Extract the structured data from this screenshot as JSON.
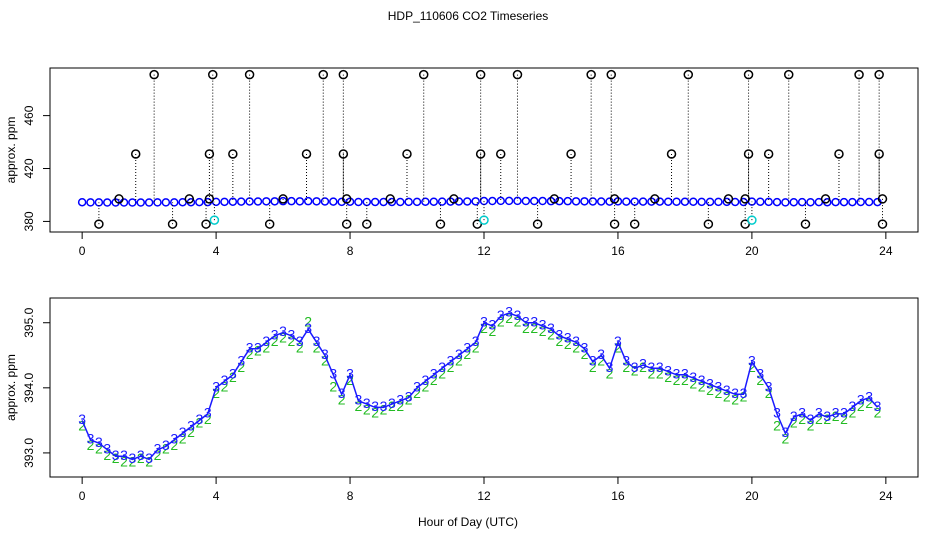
{
  "chart_data": [
    {
      "type": "scatter",
      "title": "HDP_110606  CO2 Timeseries",
      "ylabel": "approx. ppm",
      "xlim": [
        -0.96,
        24.96
      ],
      "xticks": [
        0,
        4,
        8,
        12,
        16,
        20,
        24
      ],
      "ylim": [
        372,
        496
      ],
      "yticks": [
        380,
        420,
        460
      ],
      "x": [
        0,
        0.25,
        0.5,
        0.75,
        1,
        1.25,
        1.5,
        1.75,
        2,
        2.25,
        2.5,
        2.75,
        3,
        3.25,
        3.5,
        3.75,
        4,
        4.25,
        4.5,
        4.75,
        5,
        5.25,
        5.5,
        5.75,
        6,
        6.25,
        6.5,
        6.75,
        7,
        7.25,
        7.5,
        7.75,
        8,
        8.25,
        8.5,
        8.75,
        9,
        9.25,
        9.5,
        9.75,
        10,
        10.25,
        10.5,
        10.75,
        11,
        11.25,
        11.5,
        11.75,
        12,
        12.25,
        12.5,
        12.75,
        13,
        13.25,
        13.5,
        13.75,
        14,
        14.25,
        14.5,
        14.75,
        15,
        15.25,
        15.5,
        15.75,
        16,
        16.25,
        16.5,
        16.75,
        17,
        17.25,
        17.5,
        17.75,
        18,
        18.25,
        18.5,
        18.75,
        19,
        19.25,
        19.5,
        19.75,
        20,
        20.25,
        20.5,
        20.75,
        21,
        21.25,
        21.5,
        21.75,
        22,
        22.25,
        22.5,
        22.75,
        23,
        23.25,
        23.5,
        23.75
      ],
      "series": [
        {
          "color": "#0000ff",
          "marker": "circle",
          "values": [
            394.5,
            394.4,
            394.4,
            394.3,
            394.3,
            394.3,
            394.3,
            394.3,
            394.3,
            394.4,
            394.4,
            394.4,
            394.5,
            394.5,
            394.6,
            394.6,
            394.8,
            394.8,
            394.9,
            395.0,
            395.1,
            395.1,
            395.2,
            395.2,
            395.3,
            395.3,
            395.2,
            395.3,
            395.2,
            395.1,
            395.0,
            394.8,
            394.9,
            394.7,
            394.7,
            394.7,
            394.7,
            394.7,
            394.7,
            394.8,
            394.8,
            394.9,
            394.9,
            395.0,
            395.0,
            395.1,
            395.1,
            395.2,
            395.4,
            395.4,
            395.5,
            395.5,
            395.5,
            395.4,
            395.4,
            395.4,
            395.3,
            395.3,
            395.3,
            395.2,
            395.2,
            395.1,
            395.1,
            395.0,
            395.2,
            395.0,
            395.0,
            395.0,
            395.0,
            395.0,
            394.9,
            394.9,
            394.9,
            394.9,
            394.8,
            394.8,
            394.8,
            394.8,
            394.7,
            394.7,
            395.0,
            394.9,
            394.8,
            394.6,
            394.4,
            394.5,
            394.6,
            394.5,
            394.6,
            394.5,
            394.6,
            394.6,
            394.6,
            394.7,
            394.7,
            394.6
          ]
        },
        {
          "color": "#000000",
          "marker": "circle",
          "stem": true,
          "x": [
            2.15,
            3.9,
            5.0,
            7.2,
            7.8,
            10.2,
            11.9,
            13.0,
            15.2,
            15.8,
            18.1,
            19.9,
            21.1,
            23.2,
            23.8,
            1.6,
            3.8,
            4.5,
            6.7,
            7.8,
            9.7,
            11.9,
            12.5,
            14.6,
            17.6,
            19.9,
            20.5,
            22.6,
            23.8,
            1.1,
            3.2,
            3.8,
            6.0,
            7.9,
            9.2,
            11.1,
            14.1,
            15.9,
            17.1,
            19.3,
            19.8,
            22.2,
            23.9,
            0.5,
            2.7,
            3.7,
            5.6,
            7.9,
            8.5,
            10.7,
            11.8,
            13.6,
            15.9,
            16.5,
            18.7,
            19.8,
            21.6,
            23.9
          ],
          "values": [
            491,
            491,
            491,
            491,
            491,
            491,
            491,
            491,
            491,
            491,
            491,
            491,
            491,
            491,
            491,
            431,
            431,
            431,
            431,
            431,
            431,
            431,
            431,
            431,
            431,
            431,
            431,
            431,
            431,
            397,
            397,
            397,
            397,
            397,
            397,
            397,
            397,
            397,
            397,
            397,
            397,
            397,
            397,
            378,
            378,
            378,
            378,
            378,
            378,
            378,
            378,
            378,
            378,
            378,
            378,
            378,
            378,
            378
          ]
        },
        {
          "color": "#00cccc",
          "marker": "circle",
          "stem": true,
          "x": [
            3.95,
            12.0,
            20.0
          ],
          "values": [
            381,
            381,
            381
          ]
        }
      ]
    },
    {
      "type": "scatter",
      "ylabel": "approx. ppm",
      "xlabel": "Hour of Day (UTC)",
      "xlim": [
        -0.96,
        24.96
      ],
      "xticks": [
        0,
        4,
        8,
        12,
        16,
        20,
        24
      ],
      "ylim": [
        392.63,
        395.38
      ],
      "yticks": [
        {
          "value": 393,
          "label": "393.0"
        },
        {
          "value": 394,
          "label": "394.0"
        },
        {
          "value": 395,
          "label": "395.0"
        }
      ],
      "x": [
        0,
        0.25,
        0.5,
        0.75,
        1,
        1.25,
        1.5,
        1.75,
        2,
        2.25,
        2.5,
        2.75,
        3,
        3.25,
        3.5,
        3.75,
        4,
        4.25,
        4.5,
        4.75,
        5,
        5.25,
        5.5,
        5.75,
        6,
        6.25,
        6.5,
        6.75,
        7,
        7.25,
        7.5,
        7.75,
        8,
        8.25,
        8.5,
        8.75,
        9,
        9.25,
        9.5,
        9.75,
        10,
        10.25,
        10.5,
        10.75,
        11,
        11.25,
        11.5,
        11.75,
        12,
        12.25,
        12.5,
        12.75,
        13,
        13.25,
        13.5,
        13.75,
        14,
        14.25,
        14.5,
        14.75,
        15,
        15.25,
        15.5,
        15.75,
        16,
        16.25,
        16.5,
        16.75,
        17,
        17.25,
        17.5,
        17.75,
        18,
        18.25,
        18.5,
        18.75,
        19,
        19.25,
        19.5,
        19.75,
        20,
        20.25,
        20.5,
        20.75,
        21,
        21.25,
        21.5,
        21.75,
        22,
        22.25,
        22.5,
        22.75,
        23,
        23.25,
        23.5,
        23.75
      ],
      "series": [
        {
          "color": "#22bb22",
          "marker": "2",
          "values": [
            393.4,
            393.1,
            393.05,
            392.95,
            392.9,
            392.85,
            392.85,
            392.9,
            392.85,
            392.95,
            393.05,
            393.1,
            393.2,
            393.3,
            393.45,
            393.5,
            393.9,
            394.0,
            394.15,
            394.3,
            394.5,
            394.55,
            394.6,
            394.7,
            394.75,
            394.7,
            394.6,
            395.0,
            394.6,
            394.4,
            394.0,
            393.8,
            394.1,
            393.7,
            393.65,
            393.6,
            393.65,
            393.7,
            393.7,
            393.8,
            393.9,
            394.0,
            394.1,
            394.2,
            394.3,
            394.4,
            394.5,
            394.6,
            394.9,
            394.85,
            395.0,
            395.05,
            395.0,
            394.9,
            394.9,
            394.85,
            394.8,
            394.7,
            394.65,
            394.6,
            394.5,
            394.3,
            394.4,
            394.2,
            394.6,
            394.3,
            394.25,
            394.3,
            394.2,
            394.2,
            394.15,
            394.1,
            394.1,
            394.05,
            394.0,
            393.95,
            393.9,
            393.85,
            393.8,
            393.85,
            394.3,
            394.1,
            393.9,
            393.4,
            393.2,
            393.45,
            393.5,
            393.4,
            393.5,
            393.5,
            393.55,
            393.5,
            393.6,
            393.7,
            393.75,
            393.6
          ]
        },
        {
          "color": "#1a1aff",
          "marker": "3",
          "line": true,
          "values": [
            393.5,
            393.2,
            393.15,
            393.05,
            392.95,
            392.95,
            392.9,
            392.95,
            392.9,
            393.05,
            393.1,
            393.2,
            393.3,
            393.4,
            393.5,
            393.6,
            394.0,
            394.1,
            394.2,
            394.4,
            394.6,
            394.6,
            394.7,
            394.8,
            394.85,
            394.8,
            394.7,
            394.9,
            394.7,
            394.5,
            394.2,
            393.9,
            394.2,
            393.8,
            393.75,
            393.7,
            393.7,
            393.75,
            393.8,
            393.85,
            394.0,
            394.1,
            394.2,
            394.3,
            394.4,
            394.5,
            394.6,
            394.7,
            395.0,
            394.95,
            395.1,
            395.15,
            395.1,
            395.0,
            395.0,
            394.95,
            394.9,
            394.8,
            394.75,
            394.7,
            394.6,
            394.4,
            394.5,
            394.3,
            394.7,
            394.4,
            394.3,
            394.35,
            394.3,
            394.3,
            394.25,
            394.2,
            394.2,
            394.15,
            394.1,
            394.05,
            394.0,
            393.95,
            393.9,
            393.9,
            394.4,
            394.2,
            394.0,
            393.6,
            393.3,
            393.55,
            393.6,
            393.5,
            393.6,
            393.55,
            393.6,
            393.6,
            393.7,
            393.8,
            393.85,
            393.7
          ]
        }
      ]
    }
  ]
}
